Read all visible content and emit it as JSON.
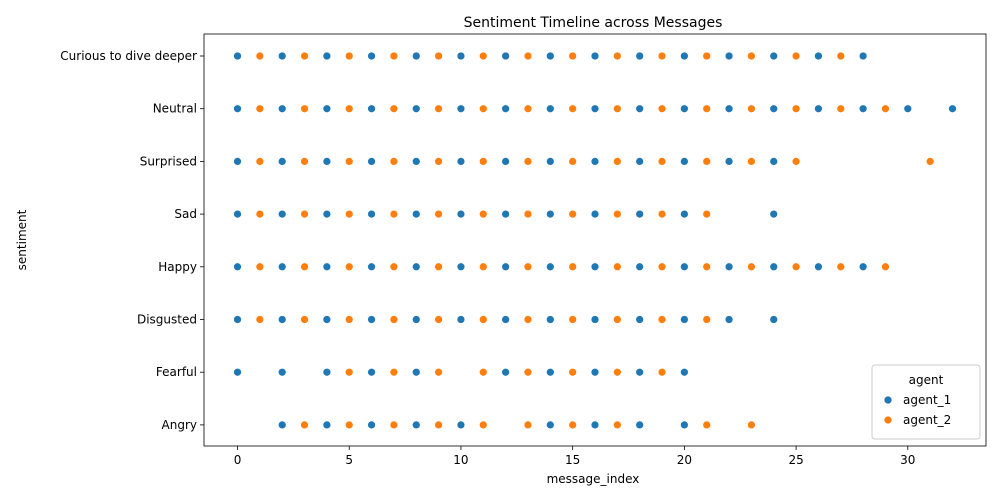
{
  "chart_data": {
    "type": "scatter",
    "title": "Sentiment Timeline across Messages",
    "xlabel": "message_index",
    "ylabel": "sentiment",
    "xlim": [
      -1.5,
      33.5
    ],
    "xticks": [
      0,
      5,
      10,
      15,
      20,
      25,
      30
    ],
    "categories": [
      "Curious to dive deeper",
      "Neutral",
      "Surprised",
      "Sad",
      "Happy",
      "Disgusted",
      "Fearful",
      "Angry"
    ],
    "legend": {
      "title": "agent",
      "position": "lower-right"
    },
    "grid": false,
    "series": [
      {
        "name": "agent_1",
        "color": "#1f77b4",
        "points": {
          "Curious to dive deeper": [
            0,
            2,
            4,
            6,
            8,
            10,
            12,
            14,
            16,
            18,
            20,
            22,
            24,
            26,
            28
          ],
          "Neutral": [
            0,
            2,
            4,
            6,
            8,
            10,
            12,
            14,
            16,
            18,
            20,
            22,
            24,
            26,
            28,
            30,
            32
          ],
          "Surprised": [
            0,
            2,
            4,
            6,
            8,
            10,
            12,
            14,
            16,
            18,
            20,
            22,
            24
          ],
          "Sad": [
            0,
            2,
            4,
            6,
            8,
            10,
            12,
            14,
            16,
            18,
            20,
            24
          ],
          "Happy": [
            0,
            2,
            4,
            6,
            8,
            10,
            12,
            14,
            16,
            18,
            20,
            22,
            24,
            26,
            28
          ],
          "Disgusted": [
            0,
            2,
            4,
            6,
            8,
            10,
            12,
            14,
            16,
            18,
            20,
            22,
            24
          ],
          "Fearful": [
            0,
            2,
            4,
            6,
            8,
            12,
            14,
            16,
            18,
            20
          ],
          "Angry": [
            2,
            4,
            6,
            8,
            10,
            14,
            16,
            18,
            20
          ]
        }
      },
      {
        "name": "agent_2",
        "color": "#ff7f0e",
        "points": {
          "Curious to dive deeper": [
            1,
            3,
            5,
            7,
            9,
            11,
            13,
            15,
            17,
            19,
            21,
            23,
            25,
            27
          ],
          "Neutral": [
            1,
            3,
            5,
            7,
            9,
            11,
            13,
            15,
            17,
            19,
            21,
            23,
            25,
            27,
            29
          ],
          "Surprised": [
            1,
            3,
            5,
            7,
            9,
            11,
            13,
            15,
            17,
            19,
            21,
            23,
            25,
            31
          ],
          "Sad": [
            1,
            3,
            5,
            7,
            9,
            11,
            13,
            15,
            17,
            19,
            21
          ],
          "Happy": [
            1,
            3,
            5,
            7,
            9,
            11,
            13,
            15,
            17,
            19,
            21,
            23,
            25,
            27,
            29
          ],
          "Disgusted": [
            1,
            3,
            5,
            7,
            9,
            11,
            13,
            15,
            17,
            19,
            21
          ],
          "Fearful": [
            5,
            7,
            9,
            11,
            13,
            15,
            17,
            19
          ],
          "Angry": [
            3,
            5,
            7,
            9,
            11,
            13,
            15,
            17,
            21,
            23
          ]
        }
      }
    ]
  }
}
